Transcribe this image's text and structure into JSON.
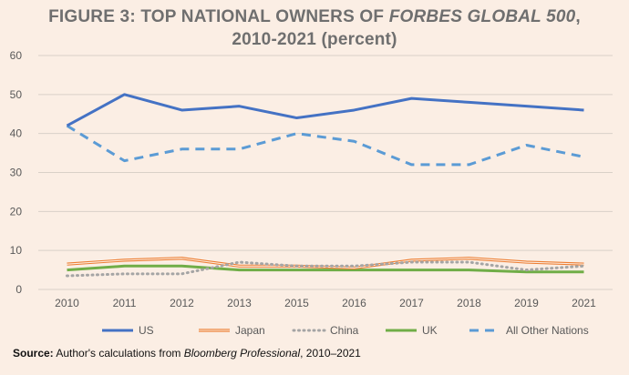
{
  "chart_data": {
    "type": "line",
    "title_line1_prefix": "FIGURE 3: TOP NATIONAL OWNERS OF ",
    "title_line1_italic": "FORBES GLOBAL 500",
    "title_line1_suffix": ",",
    "title_line2": "2010-2021 (percent)",
    "x": [
      "2010",
      "2011",
      "2012",
      "2013",
      "2015",
      "2016",
      "2017",
      "2018",
      "2019",
      "2021"
    ],
    "ylim": [
      0,
      60
    ],
    "yticks": [
      "0",
      "10",
      "20",
      "30",
      "40",
      "50",
      "60"
    ],
    "grid": true,
    "legend_position": "bottom",
    "series": [
      {
        "name": "US",
        "color": "#4472c4",
        "style": "solid",
        "values": [
          42,
          50,
          46,
          47,
          44,
          46,
          49,
          48,
          47,
          46
        ]
      },
      {
        "name": "Japan",
        "color": "#ed7d31",
        "style": "double",
        "values": [
          6.5,
          7.5,
          8,
          6,
          6,
          5.5,
          7.5,
          8,
          7,
          6.5
        ]
      },
      {
        "name": "China",
        "color": "#a5a5a5",
        "style": "dotted",
        "values": [
          3.5,
          4,
          4,
          7,
          6,
          6,
          7,
          7,
          5,
          6
        ]
      },
      {
        "name": "UK",
        "color": "#70ad47",
        "style": "solid-thick",
        "values": [
          5,
          6,
          6,
          5,
          5,
          5,
          5,
          5,
          4.5,
          4.5
        ]
      },
      {
        "name": "All Other Nations",
        "color": "#5b9bd5",
        "style": "dashed",
        "values": [
          42,
          33,
          36,
          36,
          40,
          38,
          32,
          32,
          37,
          34
        ]
      }
    ]
  },
  "source": {
    "label": "Source:",
    "text": " Author's calculations from ",
    "italic": "Bloomberg Professional",
    "suffix": ", 2010–2021"
  }
}
